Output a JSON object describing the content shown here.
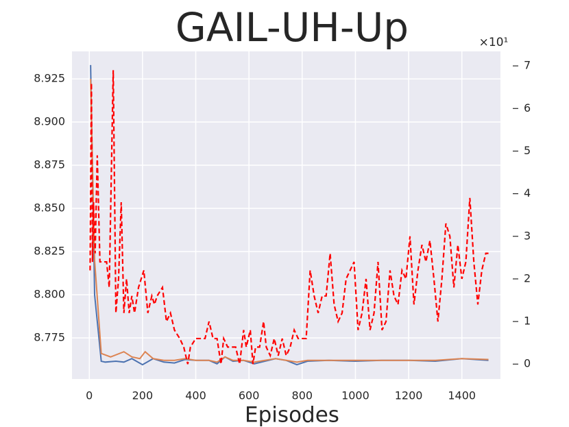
{
  "chart_data": {
    "type": "line",
    "title": "GAIL-UH-Up",
    "xlabel": "Episodes",
    "xlim": [
      -65,
      1545
    ],
    "xticks": [
      0,
      200,
      400,
      600,
      800,
      1000,
      1200,
      1400
    ],
    "ylim": [
      8.7512,
      8.9409
    ],
    "yticks": [
      {
        "value": 8.775,
        "label": "8.775"
      },
      {
        "value": 8.8,
        "label": "8.800"
      },
      {
        "value": 8.825,
        "label": "8.825"
      },
      {
        "value": 8.85,
        "label": "8.850"
      },
      {
        "value": 8.875,
        "label": "8.875"
      },
      {
        "value": 8.9,
        "label": "8.900"
      },
      {
        "value": 8.925,
        "label": "8.925"
      }
    ],
    "y2lim": [
      -0.35,
      7.34
    ],
    "y2ticks": [
      0,
      1,
      2,
      3,
      4,
      5,
      6,
      7
    ],
    "y2_scale_label": "×10¹",
    "grid": true,
    "series": [
      {
        "color": "#4c72b0",
        "dash": false,
        "x": [
          5,
          20,
          45,
          60,
          100,
          130,
          160,
          200,
          240,
          280,
          320,
          360,
          400,
          450,
          480,
          510,
          540,
          580,
          620,
          660,
          700,
          740,
          780,
          820,
          900,
          1000,
          1100,
          1200,
          1300,
          1400,
          1500
        ],
        "values": [
          8.933,
          8.8,
          8.7615,
          8.761,
          8.7615,
          8.761,
          8.763,
          8.7595,
          8.763,
          8.761,
          8.7605,
          8.7625,
          8.762,
          8.762,
          8.76,
          8.764,
          8.7615,
          8.762,
          8.76,
          8.7615,
          8.763,
          8.762,
          8.7595,
          8.7615,
          8.762,
          8.7615,
          8.762,
          8.762,
          8.7615,
          8.763,
          8.762
        ]
      },
      {
        "color": "#dd8452",
        "dash": false,
        "x": [
          5,
          20,
          45,
          80,
          130,
          160,
          190,
          210,
          240,
          280,
          320,
          360,
          400,
          450,
          480,
          510,
          540,
          580,
          620,
          660,
          700,
          740,
          780,
          820,
          900,
          1000,
          1100,
          1200,
          1300,
          1400,
          1500
        ],
        "values": [
          8.925,
          8.82,
          8.766,
          8.764,
          8.767,
          8.764,
          8.763,
          8.767,
          8.763,
          8.762,
          8.762,
          8.763,
          8.762,
          8.762,
          8.761,
          8.764,
          8.762,
          8.762,
          8.761,
          8.762,
          8.763,
          8.762,
          8.761,
          8.762,
          8.762,
          8.762,
          8.762,
          8.762,
          8.762,
          8.763,
          8.7625
        ]
      },
      {
        "color": "#ff0000",
        "dash": true,
        "axis": "y2",
        "x": [
          3,
          8,
          12,
          16,
          22,
          30,
          40,
          55,
          65,
          75,
          90,
          100,
          110,
          120,
          130,
          140,
          150,
          160,
          170,
          185,
          205,
          220,
          235,
          245,
          255,
          275,
          290,
          305,
          320,
          340,
          355,
          370,
          380,
          400,
          420,
          435,
          450,
          465,
          480,
          495,
          505,
          520,
          535,
          550,
          565,
          580,
          590,
          605,
          615,
          625,
          640,
          655,
          665,
          680,
          695,
          710,
          725,
          740,
          755,
          770,
          785,
          800,
          815,
          830,
          845,
          860,
          875,
          890,
          905,
          920,
          935,
          950,
          965,
          980,
          995,
          1010,
          1025,
          1040,
          1055,
          1070,
          1085,
          1100,
          1115,
          1130,
          1145,
          1160,
          1175,
          1190,
          1205,
          1220,
          1235,
          1250,
          1265,
          1280,
          1295,
          1310,
          1325,
          1340,
          1355,
          1370,
          1385,
          1400,
          1415,
          1430,
          1445,
          1460,
          1475,
          1490,
          1500
        ],
        "values": [
          2.2,
          6.6,
          2.4,
          3.8,
          2.6,
          4.9,
          2.4,
          2.4,
          2.4,
          1.8,
          6.9,
          1.2,
          2.0,
          3.8,
          1.2,
          2.0,
          1.2,
          1.6,
          1.2,
          1.8,
          2.2,
          1.2,
          1.6,
          1.4,
          1.6,
          1.8,
          1.0,
          1.2,
          0.8,
          0.6,
          0.4,
          0.0,
          0.4,
          0.6,
          0.6,
          0.6,
          1.0,
          0.6,
          0.6,
          0.0,
          0.6,
          0.4,
          0.4,
          0.4,
          0.0,
          0.8,
          0.4,
          0.8,
          0.0,
          0.4,
          0.4,
          1.0,
          0.4,
          0.2,
          0.6,
          0.2,
          0.6,
          0.2,
          0.4,
          0.8,
          0.6,
          0.6,
          0.6,
          2.2,
          1.6,
          1.2,
          1.6,
          1.6,
          2.6,
          1.4,
          1.0,
          1.2,
          2.0,
          2.2,
          2.4,
          0.8,
          1.2,
          2.0,
          0.8,
          1.2,
          2.4,
          0.8,
          1.0,
          2.2,
          1.6,
          1.4,
          2.2,
          2.0,
          3.0,
          1.4,
          2.2,
          2.8,
          2.4,
          2.9,
          2.0,
          1.0,
          2.0,
          3.3,
          3.0,
          1.8,
          2.8,
          2.0,
          2.4,
          3.9,
          2.4,
          1.4,
          2.2,
          2.6,
          2.6
        ]
      }
    ]
  }
}
